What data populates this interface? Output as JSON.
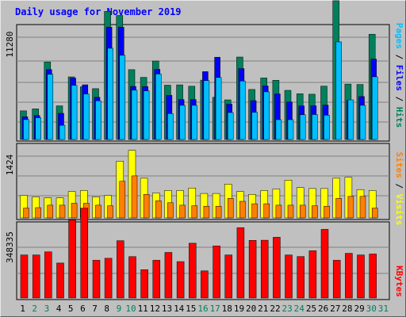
{
  "chart_data": [
    {
      "type": "bar",
      "panel": "hits-files-pages",
      "title": "Daily usage for November 2019",
      "y_tick_label": "11280",
      "y_max": 11280,
      "categories": [
        "1",
        "2",
        "3",
        "4",
        "5",
        "6",
        "7",
        "8",
        "9",
        "10",
        "11",
        "12",
        "13",
        "14",
        "15",
        "16",
        "17",
        "18",
        "19",
        "20",
        "21",
        "22",
        "23",
        "24",
        "25",
        "26",
        "27",
        "28",
        "29",
        "30",
        "31"
      ],
      "series": [
        {
          "name": "Hits",
          "color": "#00805c",
          "values": [
            2930,
            3130,
            7940,
            3440,
            6410,
            5400,
            5200,
            13110,
            12700,
            7150,
            6360,
            8030,
            5560,
            5590,
            5450,
            6080,
            4320,
            4060,
            8440,
            5120,
            6300,
            6060,
            5030,
            4680,
            4630,
            5460,
            14210,
            5670,
            5630,
            10780,
            0
          ]
        },
        {
          "name": "Files",
          "color": "#0000ff",
          "values": [
            2320,
            2450,
            7160,
            2680,
            6280,
            5600,
            4320,
            11500,
            11500,
            5430,
            5420,
            7180,
            4520,
            4090,
            4090,
            6950,
            8420,
            3610,
            7260,
            3980,
            5480,
            4670,
            3850,
            3440,
            3450,
            3520,
            0,
            3990,
            4400,
            8240,
            0
          ]
        },
        {
          "name": "Pages",
          "color": "#00bfff",
          "values": [
            2040,
            2220,
            6680,
            1450,
            5550,
            4660,
            3960,
            9340,
            8630,
            5050,
            4980,
            6700,
            2650,
            3500,
            3500,
            6030,
            6350,
            2760,
            5990,
            2780,
            4880,
            2030,
            2030,
            2530,
            2560,
            2480,
            9990,
            4060,
            3500,
            6420,
            0
          ]
        }
      ]
    },
    {
      "type": "bar",
      "panel": "visits-sites",
      "y_tick_label": "1424",
      "y_max": 1424,
      "categories": [
        "1",
        "2",
        "3",
        "4",
        "5",
        "6",
        "7",
        "8",
        "9",
        "10",
        "11",
        "12",
        "13",
        "14",
        "15",
        "16",
        "17",
        "18",
        "19",
        "20",
        "21",
        "22",
        "23",
        "24",
        "25",
        "26",
        "27",
        "28",
        "29",
        "30",
        "31"
      ],
      "series": [
        {
          "name": "Visits",
          "color": "#ffff00",
          "values": [
            460,
            430,
            410,
            410,
            540,
            560,
            430,
            460,
            1160,
            1380,
            810,
            510,
            560,
            560,
            610,
            500,
            500,
            690,
            540,
            480,
            560,
            590,
            770,
            620,
            600,
            600,
            810,
            830,
            580,
            560,
            0
          ]
        },
        {
          "name": "Sites",
          "color": "#ff8000",
          "values": [
            200,
            210,
            260,
            260,
            300,
            300,
            260,
            250,
            750,
            860,
            480,
            350,
            310,
            260,
            250,
            240,
            240,
            400,
            340,
            290,
            290,
            260,
            260,
            260,
            250,
            240,
            400,
            440,
            440,
            200,
            0
          ]
        }
      ]
    },
    {
      "type": "bar",
      "panel": "kbytes",
      "y_tick_label": "348335",
      "y_max": 348335,
      "categories": [
        "1",
        "2",
        "3",
        "4",
        "5",
        "6",
        "7",
        "8",
        "9",
        "10",
        "11",
        "12",
        "13",
        "14",
        "15",
        "16",
        "17",
        "18",
        "19",
        "20",
        "21",
        "22",
        "23",
        "24",
        "25",
        "26",
        "27",
        "28",
        "29",
        "30",
        "31"
      ],
      "series": [
        {
          "name": "KBytes",
          "color": "#ff0000",
          "values": [
            210330,
            210330,
            225270,
            170780,
            380940,
            438940,
            184100,
            193780,
            279660,
            201870,
            138350,
            184100,
            222630,
            177820,
            267350,
            132200,
            254160,
            210330,
            343140,
            281420,
            282300,
            296380,
            210330,
            202520,
            230550,
            335230,
            184100,
            218230,
            210330,
            214730,
            0
          ]
        }
      ]
    }
  ],
  "right_labels": {
    "pages": "Pages",
    "files": "Files",
    "hits": "Hits",
    "sites": "Sites",
    "visits": "Visits",
    "kbytes": "KBytes",
    "sep": " / "
  },
  "colors": {
    "background": "#c0c0c0",
    "grid": "#808080",
    "weekday_label": "#000000",
    "weekend_label": "#00805c"
  },
  "weekend_days": [
    "2",
    "3",
    "9",
    "10",
    "16",
    "17",
    "23",
    "24",
    "30",
    "31"
  ]
}
